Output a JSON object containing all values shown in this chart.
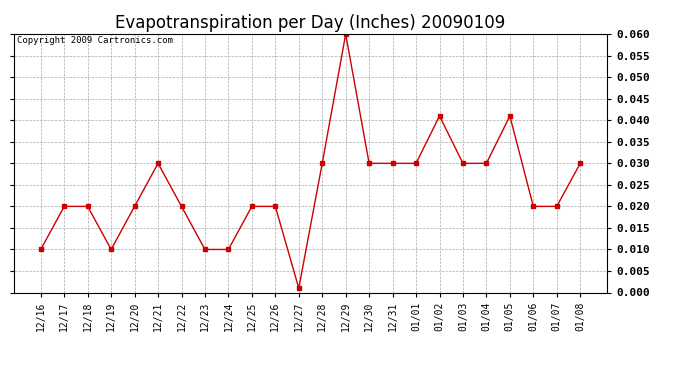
{
  "title": "Evapotranspiration per Day (Inches) 20090109",
  "copyright_text": "Copyright 2009 Cartronics.com",
  "labels": [
    "12/16",
    "12/17",
    "12/18",
    "12/19",
    "12/20",
    "12/21",
    "12/22",
    "12/23",
    "12/24",
    "12/25",
    "12/26",
    "12/27",
    "12/28",
    "12/29",
    "12/30",
    "12/31",
    "01/01",
    "01/02",
    "01/03",
    "01/04",
    "01/05",
    "01/06",
    "01/07",
    "01/08"
  ],
  "values": [
    0.01,
    0.02,
    0.02,
    0.01,
    0.02,
    0.03,
    0.02,
    0.01,
    0.01,
    0.02,
    0.02,
    0.001,
    0.03,
    0.06,
    0.03,
    0.03,
    0.03,
    0.041,
    0.03,
    0.03,
    0.041,
    0.02,
    0.02,
    0.03
  ],
  "line_color": "#cc0000",
  "marker_color": "#cc0000",
  "background_color": "#ffffff",
  "grid_color": "#aaaaaa",
  "ylim_min": 0.0,
  "ylim_max": 0.06,
  "ytick_interval": 0.005,
  "title_fontsize": 12,
  "tick_fontsize": 7,
  "copyright_fontsize": 6.5
}
